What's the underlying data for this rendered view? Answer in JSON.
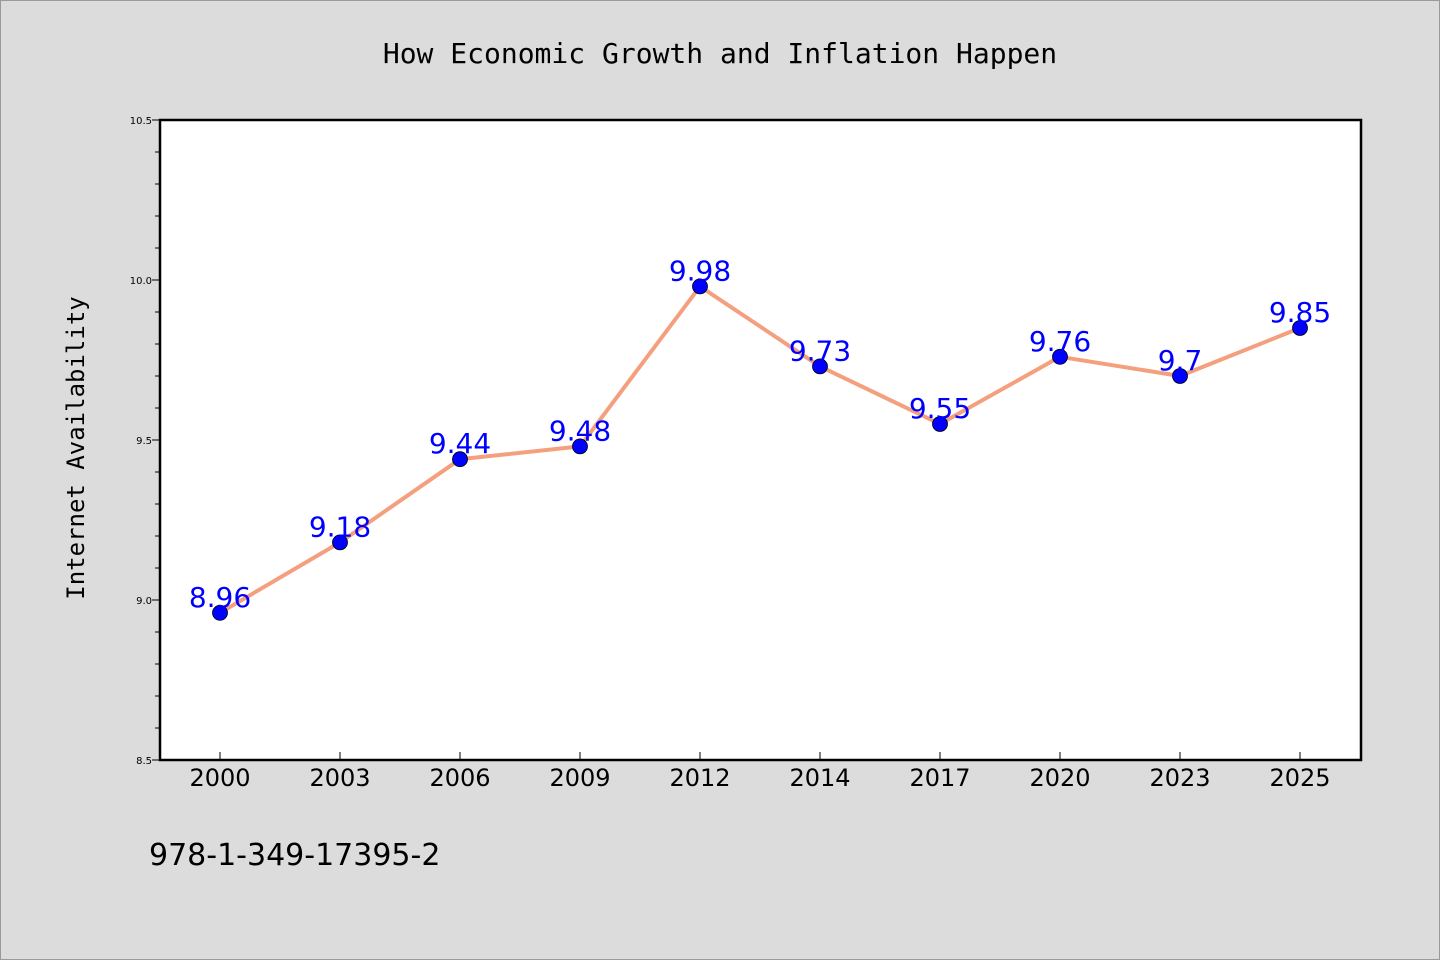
{
  "chart_data": {
    "type": "line",
    "title": "How Economic Growth and Inflation Happen",
    "xlabel": "",
    "ylabel": "Internet Availability",
    "categories": [
      "2000",
      "2003",
      "2006",
      "2009",
      "2012",
      "2014",
      "2017",
      "2020",
      "2023",
      "2025"
    ],
    "series": [
      {
        "values": [
          8.96,
          9.18,
          9.44,
          9.48,
          9.98,
          9.73,
          9.55,
          9.76,
          9.7,
          9.85
        ],
        "data_labels": [
          "8.96",
          "9.18",
          "9.44",
          "9.48",
          "9.98",
          "9.73",
          "9.55",
          "9.76",
          "9.7",
          "9.85"
        ]
      }
    ],
    "ylim": [
      8.5,
      10.5
    ],
    "yticks": [
      "8.5",
      "9.0",
      "9.5",
      "10.0",
      "10.5"
    ],
    "grid": false,
    "colors": {
      "line": "#f4a07f",
      "marker": "#0000ff",
      "label": "#0000ff",
      "background": "#dcdcdc",
      "plot_background": "#ffffff"
    }
  },
  "footer": {
    "isbn": "978-1-349-17395-2"
  }
}
